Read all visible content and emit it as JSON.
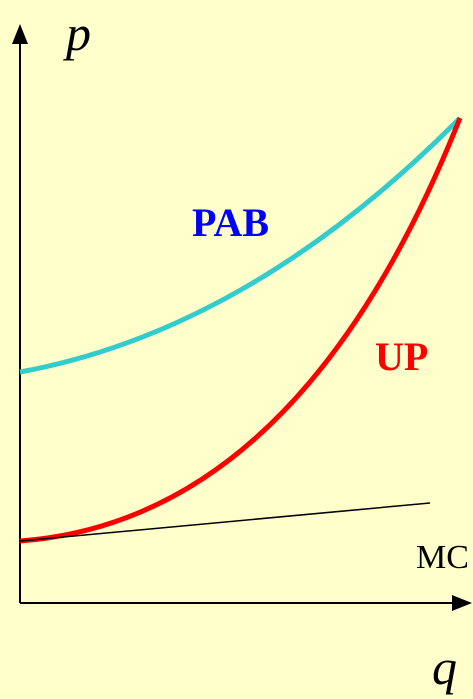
{
  "axes": {
    "y_label": "p",
    "x_label": "q"
  },
  "curves": [
    {
      "label": "PAB"
    },
    {
      "label": "UP"
    },
    {
      "label": "MC"
    }
  ]
}
